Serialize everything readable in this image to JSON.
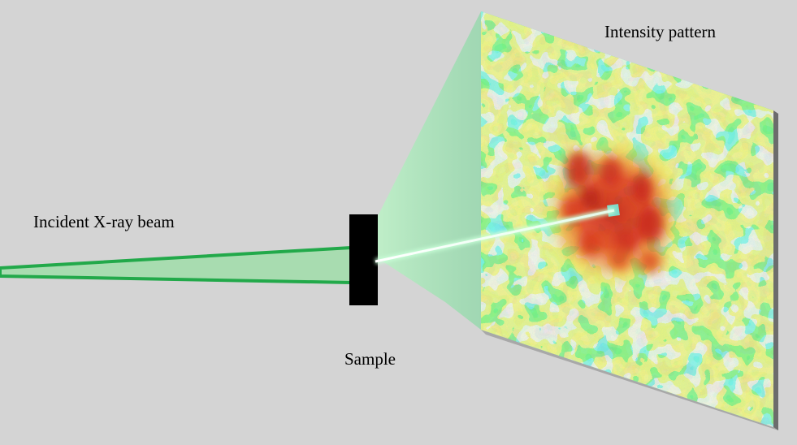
{
  "labels": {
    "incident_beam": "Incident X-ray beam",
    "sample": "Sample",
    "intensity_pattern": "Intensity pattern"
  },
  "colors": {
    "background": "#d4d4d4",
    "beam_outline": "#22a94a",
    "beam_fill": "#a8dcb0",
    "cone_fill": "#9ee0b0",
    "sample": "#000000",
    "pattern_base": "#3cc8c8",
    "pattern_mid": "#e6f03c",
    "pattern_hot": "#e0401e"
  }
}
